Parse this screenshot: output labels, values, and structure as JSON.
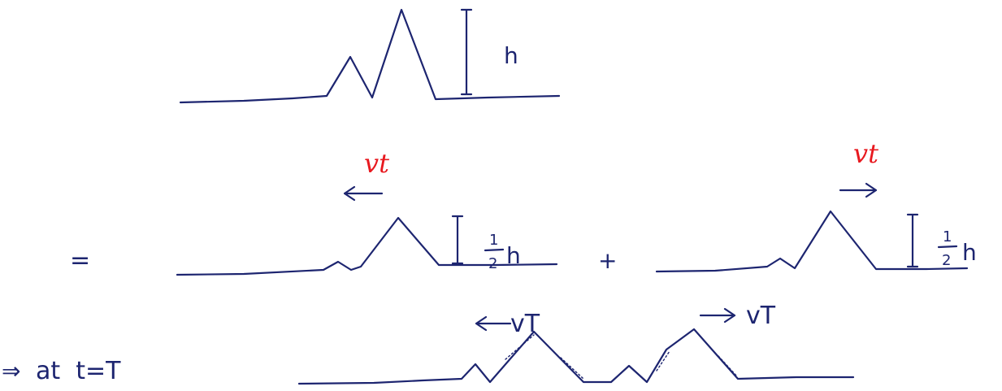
{
  "top_pulse": {
    "height_label": "h"
  },
  "decomposition": {
    "equals_sign": "=",
    "plus_sign": "+",
    "left_wave": {
      "velocity_label": "vt",
      "height_fraction_num": "1",
      "height_fraction_den": "2",
      "height_symbol": "h"
    },
    "right_wave": {
      "velocity_label": "vt",
      "height_fraction_num": "1",
      "height_fraction_den": "2",
      "height_symbol": "h"
    }
  },
  "later_time": {
    "prefix_arrow": "⇒",
    "label": "at  t=T",
    "left_velocity": "vT",
    "right_velocity": "vT"
  },
  "colors": {
    "ink": "#1d2570",
    "velocity_red": "#e8191f"
  }
}
